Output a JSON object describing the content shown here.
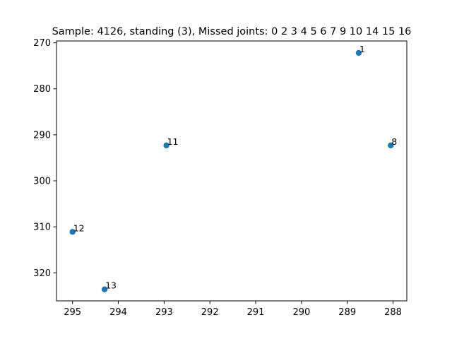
{
  "chart_data": {
    "type": "scatter",
    "title": "Sample: 4126, standing (3), Missed joints: 0  2  3  4  5  6  7  9  10  14  15  16",
    "xlabel": "",
    "ylabel": "",
    "x_axis_inverted": true,
    "y_axis_inverted": true,
    "xlim": [
      295.35,
      287.7
    ],
    "ylim": [
      269.6,
      326.1
    ],
    "x_ticks": [
      295,
      294,
      293,
      292,
      291,
      290,
      289,
      288
    ],
    "y_ticks": [
      270,
      280,
      290,
      300,
      310,
      320
    ],
    "grid": false,
    "marker_color": "#1f77b4",
    "points": [
      {
        "label": "1",
        "x": 288.75,
        "y": 272.2
      },
      {
        "label": "8",
        "x": 288.05,
        "y": 292.3
      },
      {
        "label": "11",
        "x": 292.95,
        "y": 292.3
      },
      {
        "label": "12",
        "x": 295.0,
        "y": 311.1
      },
      {
        "label": "13",
        "x": 294.3,
        "y": 323.6
      }
    ]
  }
}
